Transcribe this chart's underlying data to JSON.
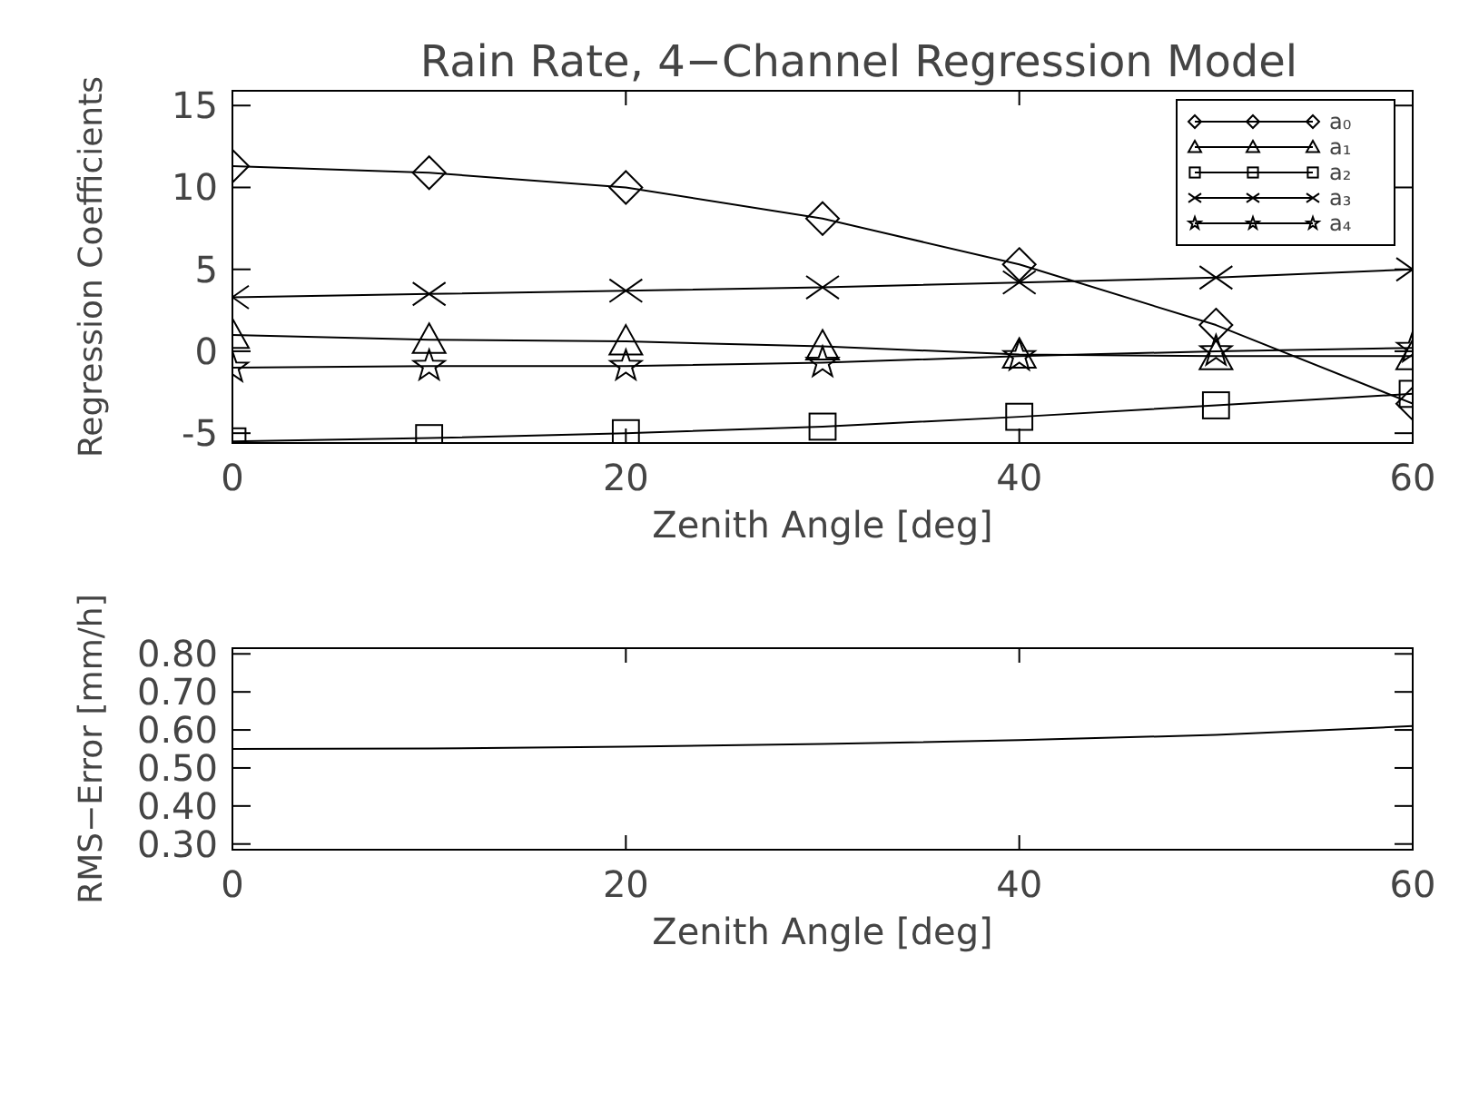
{
  "chart_data": [
    {
      "type": "line",
      "title": "Rain Rate, 4−Channel Regression Model",
      "xlabel": "Zenith Angle [deg]",
      "ylabel": "Regression Coefficients",
      "x": [
        0,
        10,
        20,
        30,
        40,
        50,
        60
      ],
      "xlim": [
        0,
        60
      ],
      "xticks": [
        0,
        20,
        40,
        60
      ],
      "ylim": [
        -5.6,
        15.9
      ],
      "yticks": [
        -5,
        0,
        5,
        10,
        15
      ],
      "legend": "top right",
      "grid": false,
      "series": [
        {
          "name": "a₀",
          "color": "#000000",
          "marker": "diamond",
          "values": [
            11.3,
            10.9,
            10.0,
            8.1,
            5.3,
            1.6,
            -3.2
          ]
        },
        {
          "name": "a₁",
          "color": "#000000",
          "marker": "triangle",
          "values": [
            1.0,
            0.7,
            0.6,
            0.3,
            -0.2,
            -0.3,
            -0.3
          ]
        },
        {
          "name": "a₂",
          "color": "#000000",
          "marker": "square",
          "values": [
            -5.5,
            -5.3,
            -5.0,
            -4.6,
            -4.0,
            -3.3,
            -2.6
          ]
        },
        {
          "name": "a₃",
          "color": "#000000",
          "marker": "cross",
          "values": [
            3.3,
            3.5,
            3.7,
            3.9,
            4.2,
            4.5,
            5.0
          ]
        },
        {
          "name": "a₄",
          "color": "#000000",
          "marker": "star",
          "values": [
            -1.0,
            -0.9,
            -0.9,
            -0.7,
            -0.3,
            0.0,
            0.2
          ]
        }
      ]
    },
    {
      "type": "line",
      "xlabel": "Zenith Angle [deg]",
      "ylabel": "RMS−Error [mm/h]",
      "x": [
        0,
        10,
        20,
        30,
        40,
        50,
        60
      ],
      "xlim": [
        0,
        60
      ],
      "xticks": [
        0,
        20,
        40,
        60
      ],
      "ylim": [
        0.285,
        0.815
      ],
      "yticks": [
        {
          "value": 0.3,
          "label": "0.30"
        },
        {
          "value": 0.4,
          "label": "0.40"
        },
        {
          "value": 0.5,
          "label": "0.50"
        },
        {
          "value": 0.6,
          "label": "0.60"
        },
        {
          "value": 0.7,
          "label": "0.70"
        },
        {
          "value": 0.8,
          "label": "0.80"
        }
      ],
      "grid": false,
      "marker": "none",
      "series": [
        {
          "color": "#000000",
          "values": [
            0.55,
            0.551,
            0.556,
            0.563,
            0.573,
            0.587,
            0.61
          ]
        }
      ]
    }
  ]
}
